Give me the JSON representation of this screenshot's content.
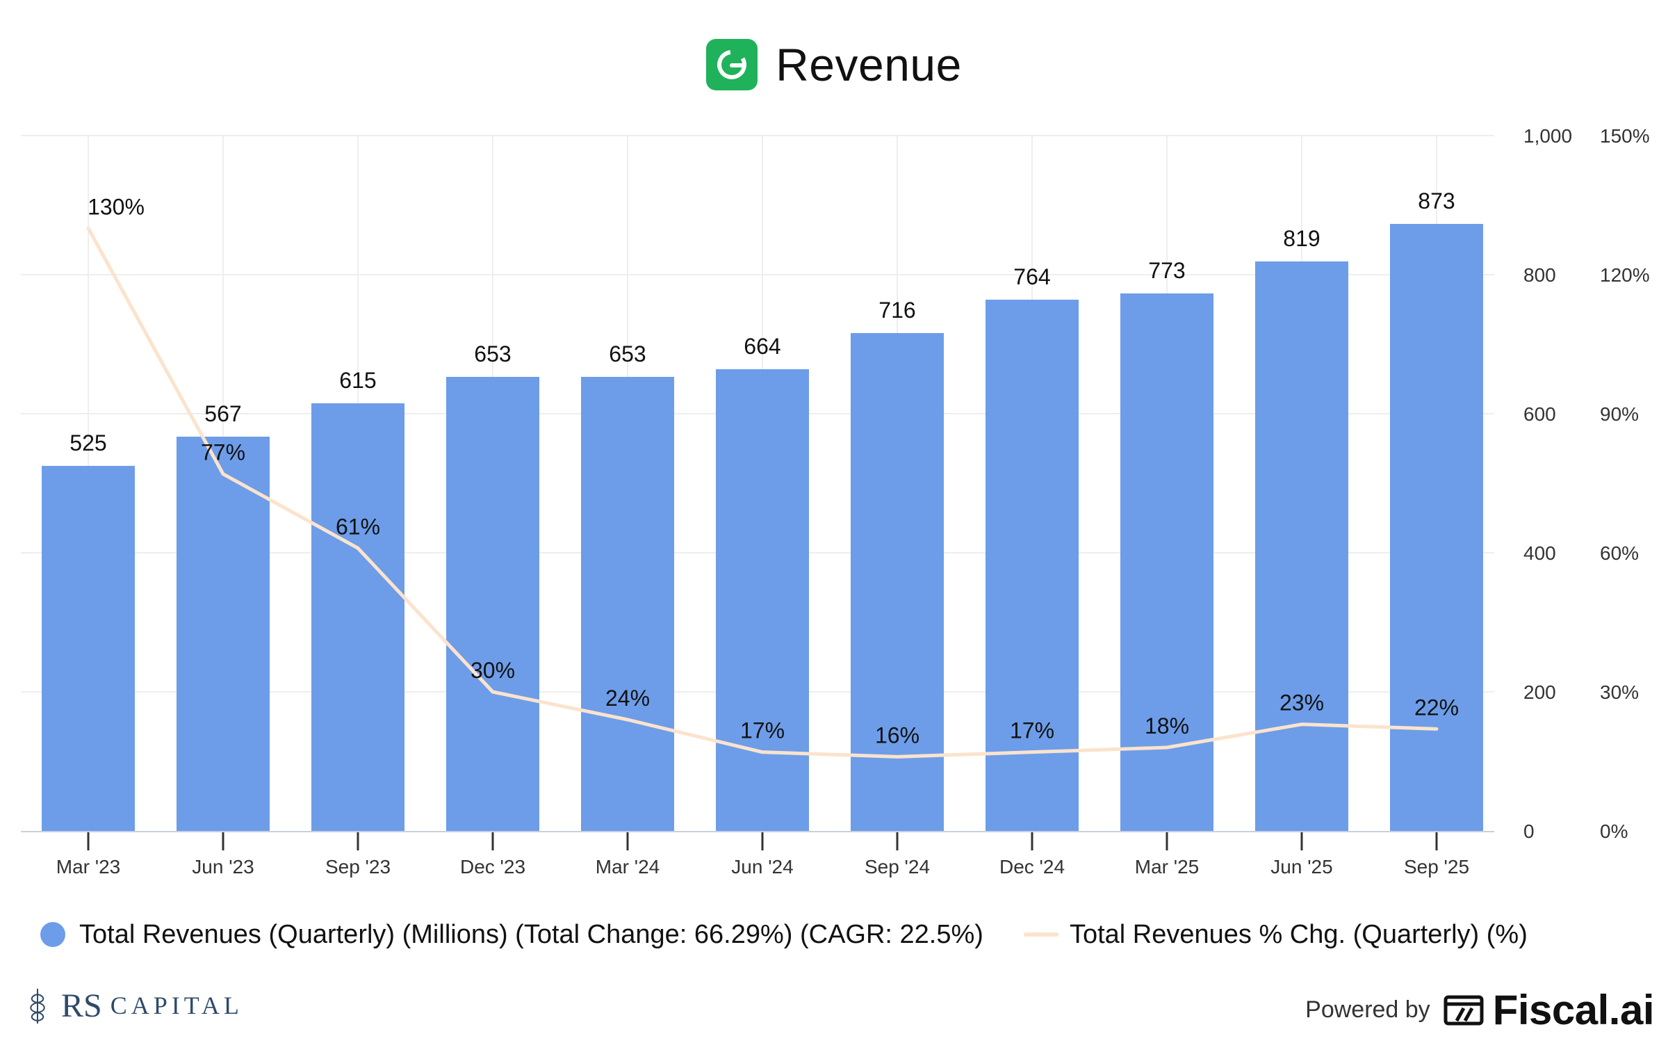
{
  "header": {
    "title": "Revenue",
    "logo_icon": "grammarly-g-icon",
    "logo_color": "#1fb25a"
  },
  "chart_data": {
    "type": "bar",
    "categories": [
      "Mar '23",
      "Jun '23",
      "Sep '23",
      "Dec '23",
      "Mar '24",
      "Jun '24",
      "Sep '24",
      "Dec '24",
      "Mar '25",
      "Jun '25",
      "Sep '25"
    ],
    "series": [
      {
        "name": "Total Revenues (Quarterly) (Millions) (Total Change: 66.29%) (CAGR: 22.5%)",
        "type": "bar",
        "axis": "left",
        "color": "#6d9de9",
        "values": [
          525,
          567,
          615,
          653,
          653,
          664,
          716,
          764,
          773,
          819,
          873
        ]
      },
      {
        "name": "Total Revenues % Chg. (Quarterly) (%)",
        "type": "line",
        "axis": "right",
        "color": "#fbe3cc",
        "values": [
          130,
          77,
          61,
          30,
          24,
          17,
          16,
          17,
          18,
          23,
          22
        ]
      }
    ],
    "y_left": {
      "min": 0,
      "max": 1000,
      "ticks": [
        0,
        200,
        400,
        600,
        800,
        1000
      ],
      "tick_labels": [
        "0",
        "200",
        "400",
        "600",
        "800",
        "1,000"
      ]
    },
    "y_right": {
      "min": 0,
      "max": 150,
      "ticks": [
        0,
        30,
        60,
        90,
        120,
        150
      ],
      "tick_labels": [
        "0%",
        "30%",
        "60%",
        "90%",
        "120%",
        "150%"
      ]
    },
    "grid": true,
    "legend": "bottom"
  },
  "legend": {
    "bar_label": "Total Revenues (Quarterly) (Millions) (Total Change: 66.29%) (CAGR: 22.5%)",
    "line_label": "Total Revenues % Chg. (Quarterly) (%)"
  },
  "footer": {
    "left_brand_rs": "RS",
    "left_brand_capital": "CAPITAL",
    "left_icon": "wheat-leaf-icon",
    "powered_by": "Powered by",
    "fiscal_brand": "Fiscal.ai",
    "fiscal_icon": "fiscal-logo-icon"
  }
}
